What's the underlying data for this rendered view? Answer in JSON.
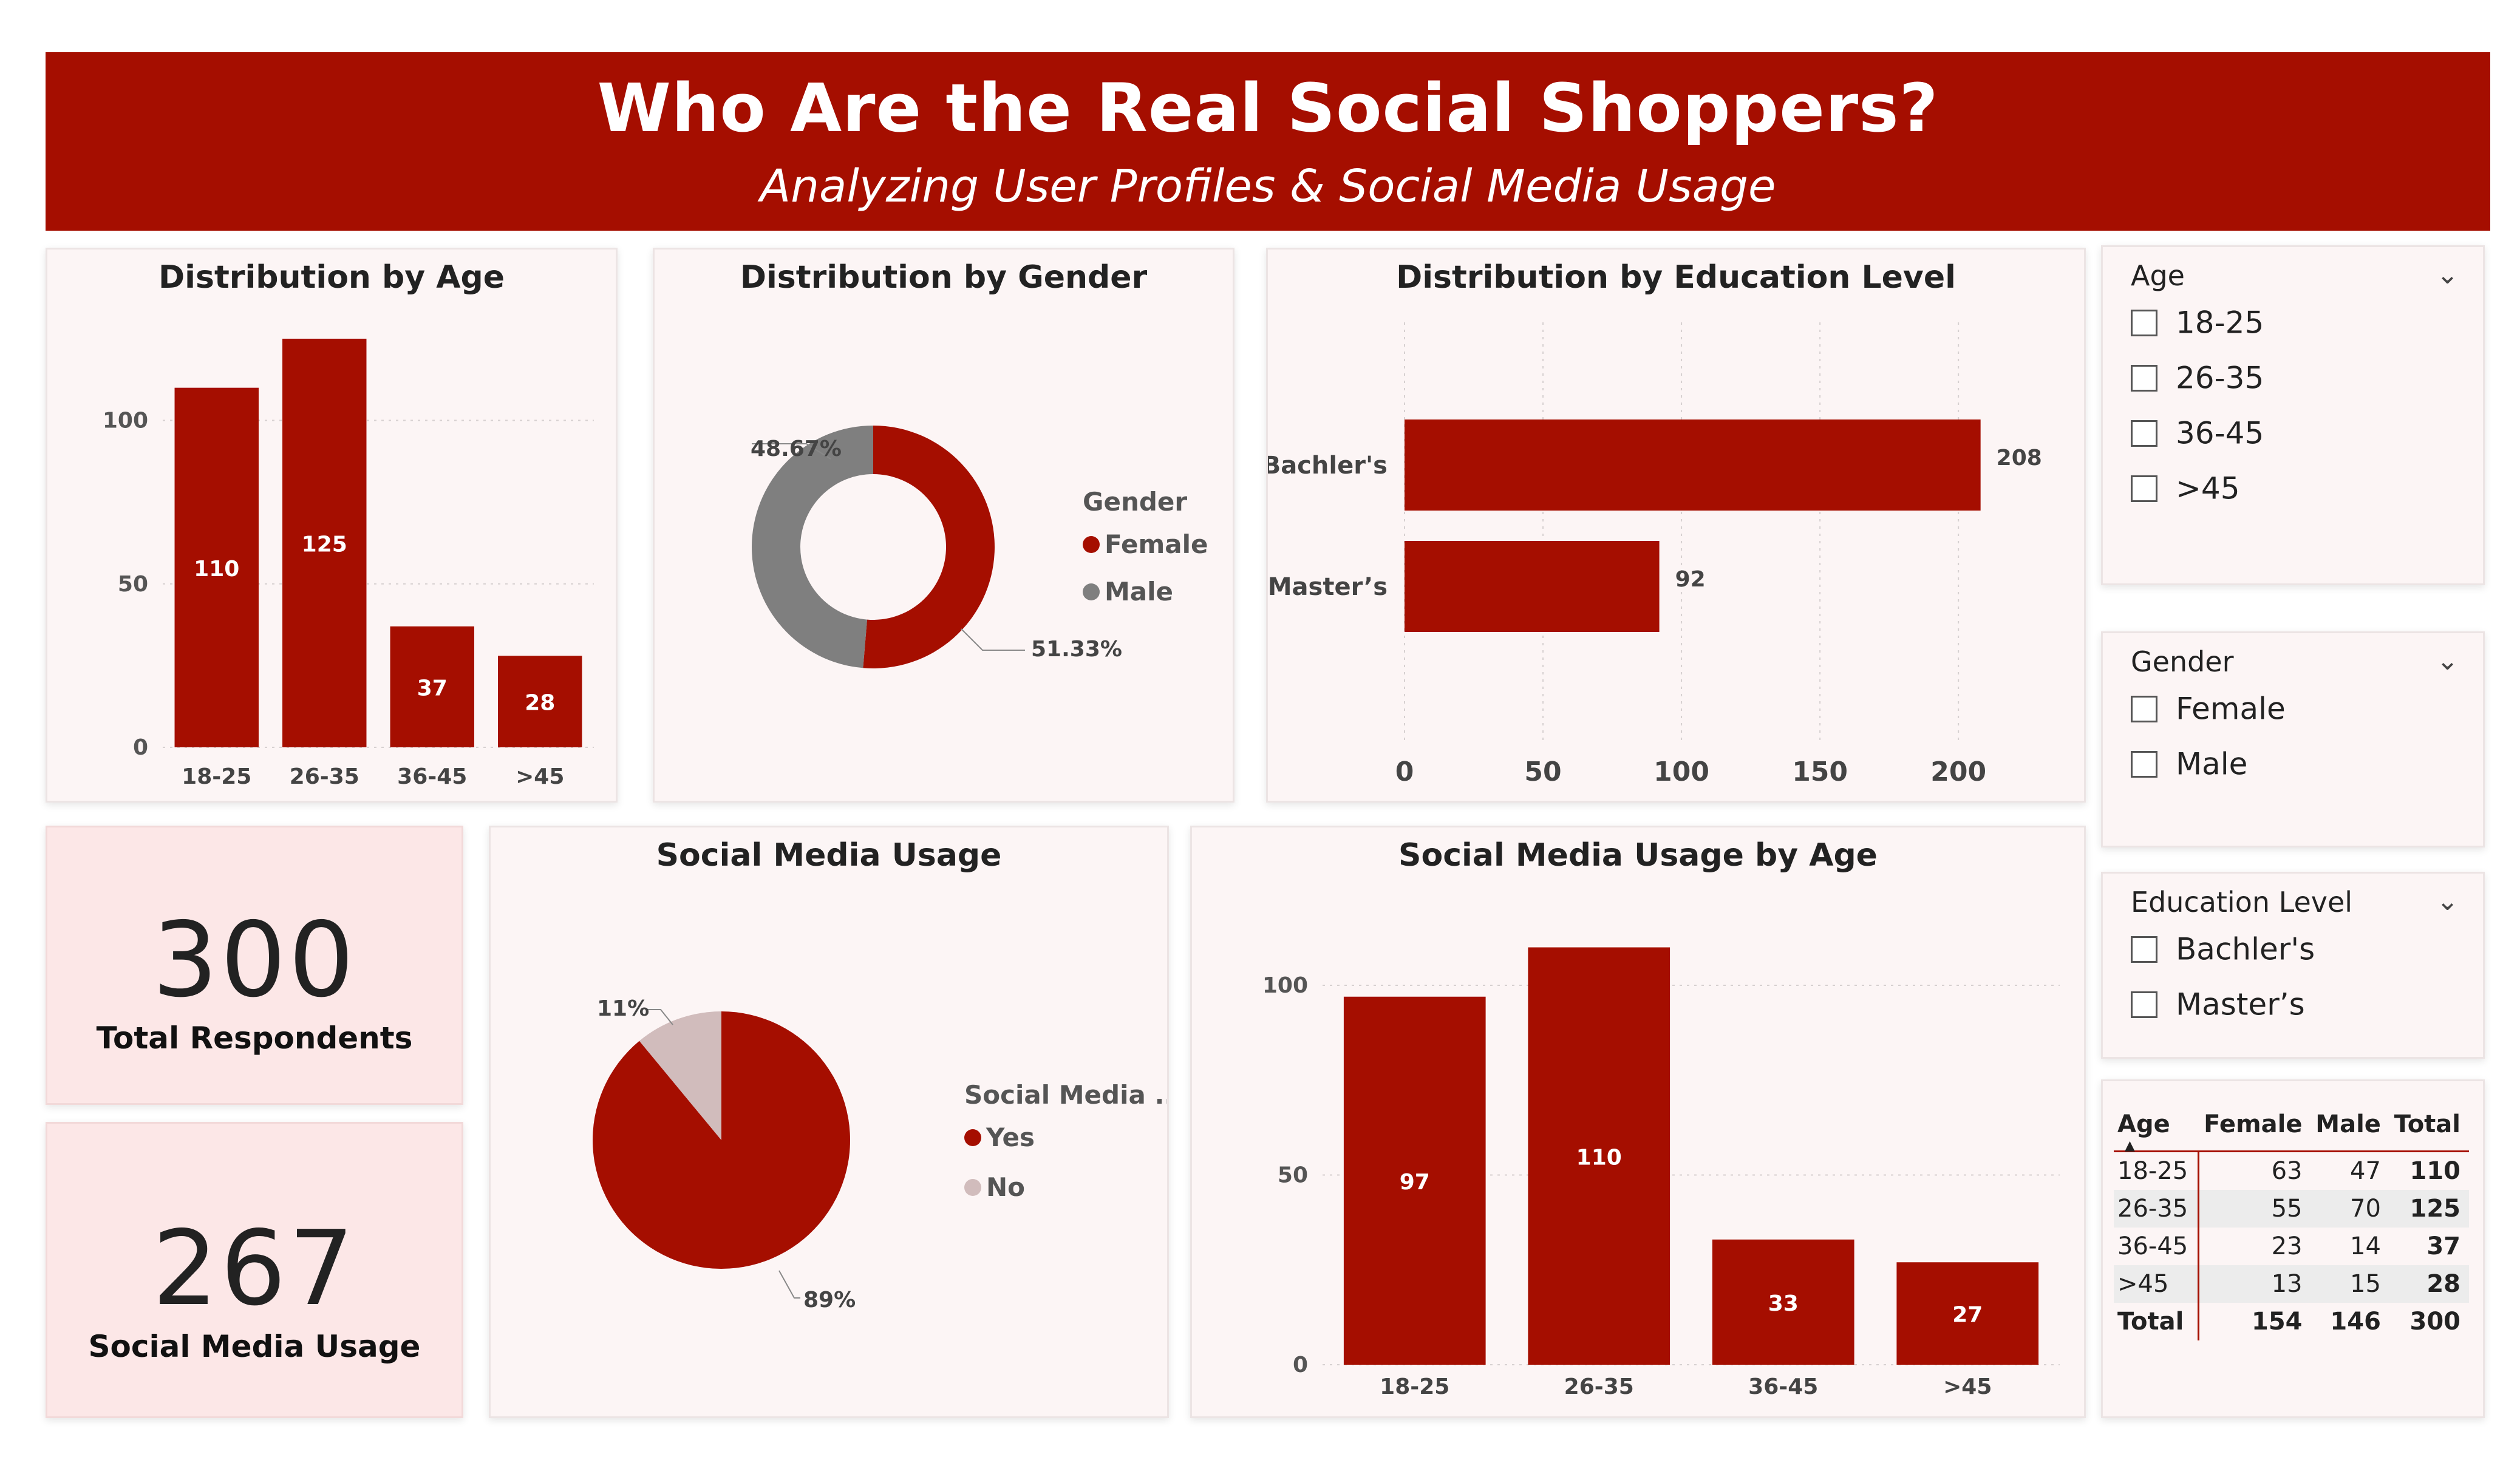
{
  "header": {
    "title": "Who Are the Real Social Shoppers?",
    "subtitle": "Analyzing User Profiles & Social Media Usage"
  },
  "colors": {
    "accent": "#a50e00",
    "gray": "#7f7f7f",
    "pale": "#d1bcbc",
    "card_bg": "#fcf5f5",
    "kpi_bg": "#fce7e7"
  },
  "kpis": [
    {
      "value": "300",
      "label": "Total Respondents"
    },
    {
      "value": "267",
      "label": "Social Media Usage"
    }
  ],
  "slicers": {
    "age": {
      "title": "Age",
      "items": [
        "18-25",
        "26-35",
        "36-45",
        ">45"
      ]
    },
    "gender": {
      "title": "Gender",
      "items": [
        "Female",
        "Male"
      ]
    },
    "education": {
      "title": "Education Level",
      "items": [
        "Bachler's",
        "Master’s"
      ]
    }
  },
  "matrix": {
    "headers": [
      "Age",
      "Female",
      "Male",
      "Total"
    ],
    "rows": [
      {
        "age": "18-25",
        "female": "63",
        "male": "47",
        "total": "110"
      },
      {
        "age": "26-35",
        "female": "55",
        "male": "70",
        "total": "125"
      },
      {
        "age": "36-45",
        "female": "23",
        "male": "14",
        "total": "37"
      },
      {
        "age": ">45",
        "female": "13",
        "male": "15",
        "total": "28"
      }
    ],
    "total": {
      "label": "Total",
      "female": "154",
      "male": "146",
      "total": "300"
    }
  },
  "chart_data": [
    {
      "id": "age",
      "type": "bar",
      "title": "Distribution by Age",
      "categories": [
        "18-25",
        "26-35",
        "36-45",
        ">45"
      ],
      "values": [
        110,
        125,
        37,
        28
      ],
      "ylim": [
        0,
        130
      ],
      "yticks": [
        0,
        50,
        100
      ],
      "grid": true
    },
    {
      "id": "gender",
      "type": "pie",
      "donut": true,
      "title": "Distribution by Gender",
      "legend_title": "Gender",
      "slices": [
        {
          "label": "Female",
          "value": 51.33,
          "text": "51.33%",
          "color": "#a50e00"
        },
        {
          "label": "Male",
          "value": 48.67,
          "text": "48.67%",
          "color": "#7f7f7f"
        }
      ],
      "legend_position": "right"
    },
    {
      "id": "education",
      "type": "bar",
      "orientation": "horizontal",
      "title": "Distribution by Education Level",
      "categories": [
        "Bachler's",
        "Master’s"
      ],
      "values": [
        208,
        92
      ],
      "xlim": [
        0,
        230
      ],
      "xticks": [
        0,
        50,
        100,
        150,
        200
      ],
      "grid": true
    },
    {
      "id": "usage",
      "type": "pie",
      "title": "Social Media Usage",
      "legend_title": "Social Media ...",
      "slices": [
        {
          "label": "Yes",
          "value": 89,
          "text": "89%",
          "color": "#a50e00"
        },
        {
          "label": "No",
          "value": 11,
          "text": "11%",
          "color": "#d1bcbc"
        }
      ],
      "legend_position": "right"
    },
    {
      "id": "usage_age",
      "type": "bar",
      "title": "Social Media Usage by Age",
      "categories": [
        "18-25",
        "26-35",
        "36-45",
        ">45"
      ],
      "values": [
        97,
        110,
        33,
        27
      ],
      "ylim": [
        0,
        116
      ],
      "yticks": [
        0,
        50,
        100
      ],
      "grid": true
    }
  ]
}
